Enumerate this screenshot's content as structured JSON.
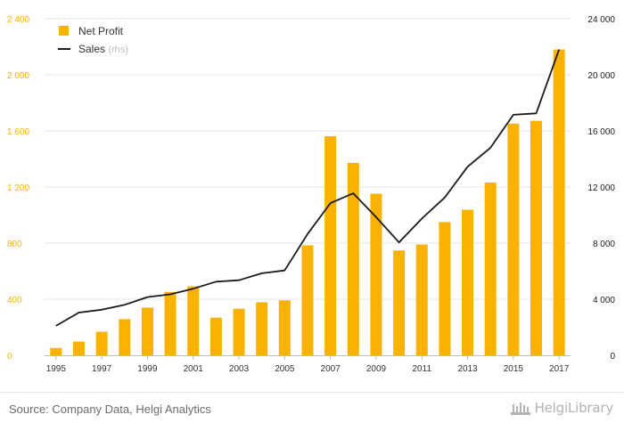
{
  "chart_data": {
    "type": "bar",
    "categories": [
      "1995",
      "1996",
      "1997",
      "1998",
      "1999",
      "2000",
      "2001",
      "2002",
      "2003",
      "2004",
      "2005",
      "2006",
      "2007",
      "2008",
      "2009",
      "2010",
      "2011",
      "2012",
      "2013",
      "2014",
      "2015",
      "2016",
      "2017"
    ],
    "series": [
      {
        "name": "Net Profit",
        "type": "bar",
        "axis": "left",
        "color": "#f9b200",
        "values": [
          52,
          98,
          168,
          258,
          340,
          452,
          492,
          268,
          332,
          378,
          392,
          784,
          1562,
          1372,
          1152,
          748,
          790,
          950,
          1038,
          1232,
          1652,
          1672,
          2180
        ]
      },
      {
        "name": "Sales",
        "type": "line",
        "axis": "right",
        "color": "#1a1a1a",
        "values": [
          2100,
          3050,
          3250,
          3600,
          4150,
          4350,
          4750,
          5250,
          5350,
          5850,
          6050,
          8650,
          10850,
          11550,
          9850,
          8050,
          9750,
          11250,
          13450,
          14800,
          17150,
          17250,
          21800
        ]
      }
    ],
    "y_left": {
      "min": 0,
      "max": 2400,
      "ticks": [
        0,
        400,
        800,
        1200,
        1600,
        2000,
        2400
      ],
      "tick_labels": [
        "0",
        "400",
        "800",
        "1 200",
        "1 600",
        "2 000",
        "2 400"
      ],
      "color": "#f9b200"
    },
    "y_right": {
      "min": 0,
      "max": 24000,
      "ticks": [
        0,
        4000,
        8000,
        12000,
        16000,
        20000,
        24000
      ],
      "tick_labels": [
        "0",
        "4 000",
        "8 000",
        "12 000",
        "16 000",
        "20 000",
        "24 000"
      ],
      "color": "#1a1a1a"
    },
    "x_tick_labels": [
      "1995",
      "1997",
      "1999",
      "2001",
      "2003",
      "2005",
      "2007",
      "2009",
      "2011",
      "2013",
      "2015",
      "2017"
    ],
    "grid": true,
    "legend": {
      "position": "top-left",
      "items": [
        {
          "label": "Net Profit",
          "suffix": ""
        },
        {
          "label": "Sales",
          "suffix": "(rhs)"
        }
      ]
    }
  },
  "footer": {
    "source": "Source: Company Data, Helgi Analytics",
    "brand": "HelgiLibrary"
  }
}
